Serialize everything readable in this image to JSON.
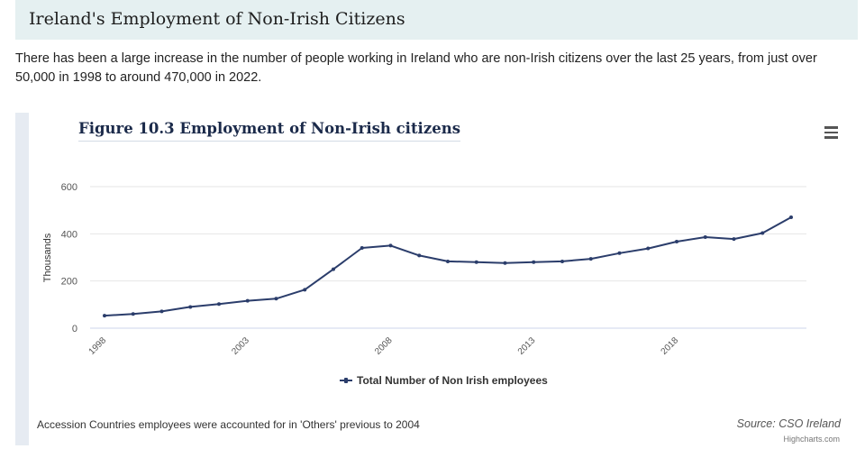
{
  "page": {
    "heading": "Ireland's Employment of Non-Irish Citizens",
    "intro": "There has been a large increase in the number of people working in Ireland who are non-Irish citizens over the last 25 years, from just over 50,000 in 1998 to around 470,000 in 2022."
  },
  "chart_menu": {
    "icon": "hamburger-menu-icon",
    "label": "Chart context menu"
  },
  "chart_data": {
    "type": "line",
    "title": "Figure 10.3 Employment of Non-Irish citizens",
    "xlabel": "",
    "ylabel": "Thousands",
    "ylim": [
      0,
      600
    ],
    "yticks": [
      0,
      200,
      400,
      600
    ],
    "ytick_labels": [
      "0",
      "200",
      "400",
      "600"
    ],
    "xtick_labels": [
      "1998",
      "2003",
      "2008",
      "2013",
      "2018"
    ],
    "xticks": [
      1998,
      2003,
      2008,
      2013,
      2018
    ],
    "grid": true,
    "legend_position": "bottom-center",
    "x": [
      1998,
      1999,
      2000,
      2001,
      2002,
      2003,
      2004,
      2005,
      2006,
      2007,
      2008,
      2009,
      2010,
      2011,
      2012,
      2013,
      2014,
      2015,
      2016,
      2017,
      2018,
      2019,
      2020,
      2021,
      2022
    ],
    "series": [
      {
        "name": "Total Number of Non Irish employees",
        "color": "#2b3d6b",
        "values": [
          53,
          60,
          71,
          90,
          102,
          116,
          125,
          163,
          250,
          340,
          350,
          308,
          283,
          280,
          276,
          280,
          283,
          294,
          318,
          338,
          367,
          386,
          378,
          403,
          470
        ]
      }
    ],
    "caption": "Accession Countries employees were accounted for in 'Others' previous to 2004",
    "source": "Source: CSO Ireland",
    "credit": "Highcharts.com"
  }
}
